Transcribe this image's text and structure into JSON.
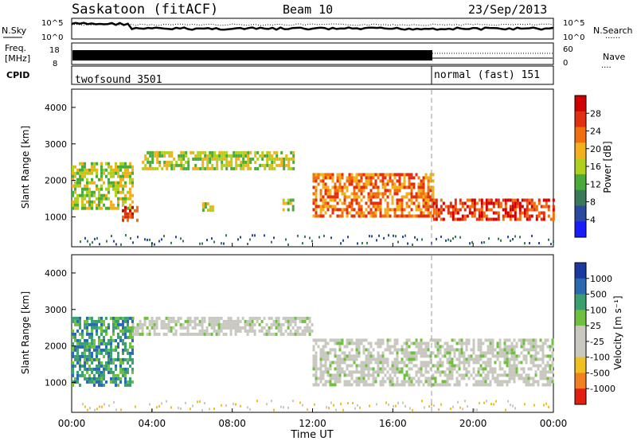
{
  "header": {
    "station": "Saskatoon (fitACF)",
    "beam": "Beam 10",
    "date": "23/Sep/2013"
  },
  "noise_panel": {
    "left_label": "N.Sky",
    "left_ticks": [
      "10^5",
      "10^0"
    ],
    "right_ticks": [
      "10^5",
      "10^0"
    ],
    "right_label": "N.Search",
    "legend_dots": "......"
  },
  "freq_panel": {
    "left_label_1": "Freq.",
    "left_label_2": "[MHz]",
    "left_ticks": [
      "18",
      "8"
    ],
    "right_ticks": [
      "60",
      "0"
    ],
    "right_label": "Nave",
    "legend_dots": "...."
  },
  "cpid_panel": {
    "label": "CPID",
    "programs": [
      {
        "name": "twofsound 3501",
        "start_hour": 0
      },
      {
        "name": "normal (fast) 151",
        "start_hour": 18
      }
    ]
  },
  "power_panel": {
    "ylabel": "Slant Range [km]",
    "yticks": [
      "4000",
      "3000",
      "2000",
      "1000"
    ],
    "colorbar_label": "Power [dB]",
    "colorbar_ticks": [
      "28",
      "24",
      "20",
      "16",
      "12",
      "8",
      "4"
    ],
    "colors": [
      "#1a1aff",
      "#2a4a9f",
      "#3a7a5a",
      "#4aaa3a",
      "#b0d020",
      "#f0b020",
      "#f07010",
      "#e03010",
      "#d00000"
    ]
  },
  "velocity_panel": {
    "ylabel": "Slant Range [km]",
    "yticks": [
      "4000",
      "3000",
      "2000",
      "1000"
    ],
    "colorbar_label": "Velocity [m s⁻¹]",
    "colorbar_ticks": [
      "1000",
      "500",
      "100",
      "25",
      "-25",
      "-100",
      "-500",
      "-1000"
    ],
    "colors": [
      "#1a3aa0",
      "#2a6ab0",
      "#3aa070",
      "#70c040",
      "#c8c8c0",
      "#c8c8c0",
      "#f0c020",
      "#f08020",
      "#e02010"
    ]
  },
  "xaxis": {
    "label": "Time UT",
    "ticks": [
      "00:00",
      "04:00",
      "08:00",
      "12:00",
      "16:00",
      "20:00",
      "00:00"
    ]
  },
  "chart_data": {
    "type": "heatmap",
    "x_range_hours": [
      0,
      24
    ],
    "y_range_km": [
      180,
      4500
    ],
    "mode_change_hour": 18,
    "power_regions": [
      {
        "hour_start": 0,
        "hour_end": 3,
        "range_km": [
          1200,
          2500
        ],
        "power_db": 16
      },
      {
        "hour_start": 2.5,
        "hour_end": 3.3,
        "range_km": [
          950,
          1300
        ],
        "power_db": 28
      },
      {
        "hour_start": 3.5,
        "hour_end": 11,
        "range_km": [
          2300,
          2800
        ],
        "power_db": 14
      },
      {
        "hour_start": 6.5,
        "hour_end": 7,
        "range_km": [
          1200,
          1400
        ],
        "power_db": 16
      },
      {
        "hour_start": 10.5,
        "hour_end": 11,
        "range_km": [
          1200,
          1500
        ],
        "power_db": 16
      },
      {
        "hour_start": 12,
        "hour_end": 18,
        "range_km": [
          1000,
          2200
        ],
        "power_db": 24
      },
      {
        "hour_start": 18,
        "hour_end": 24,
        "range_km": [
          900,
          1500
        ],
        "power_db": 28
      }
    ],
    "velocity_regions": [
      {
        "hour_start": 0,
        "hour_end": 3,
        "range_km": [
          900,
          2800
        ],
        "velocity_ms": 100
      },
      {
        "hour_start": 3,
        "hour_end": 12,
        "range_km": [
          2300,
          2800
        ],
        "velocity_ms": 0
      },
      {
        "hour_start": 12,
        "hour_end": 24,
        "range_km": [
          900,
          2200
        ],
        "velocity_ms": 0
      }
    ]
  }
}
